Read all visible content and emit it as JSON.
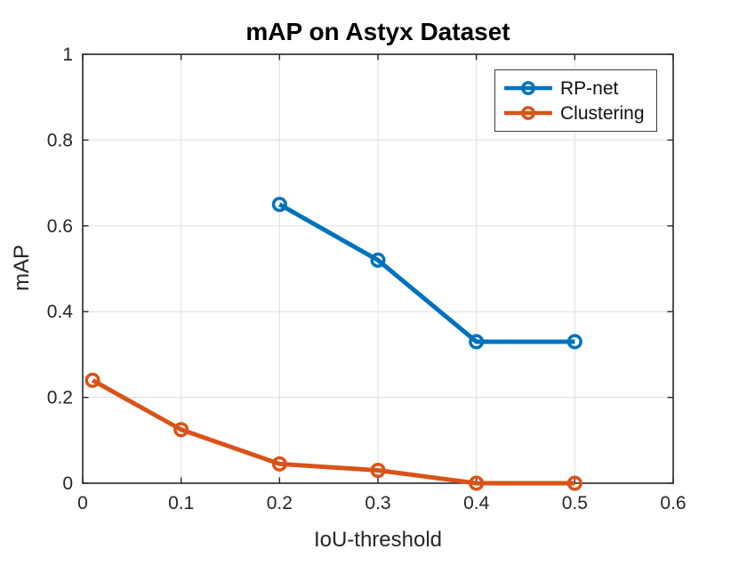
{
  "chart_data": {
    "type": "line",
    "title": "mAP on Astyx Dataset",
    "xlabel": "IoU-threshold",
    "ylabel": "mAP",
    "xlim": [
      0,
      0.6
    ],
    "ylim": [
      0,
      1
    ],
    "xticks": [
      0,
      0.1,
      0.2,
      0.3,
      0.4,
      0.5,
      0.6
    ],
    "xtick_labels": [
      "0",
      "0.1",
      "0.2",
      "0.3",
      "0.4",
      "0.5",
      "0.6"
    ],
    "yticks": [
      0,
      0.2,
      0.4,
      0.6,
      0.8,
      1
    ],
    "ytick_labels": [
      "0",
      "0.2",
      "0.4",
      "0.6",
      "0.8",
      "1"
    ],
    "grid": true,
    "legend_position": "top-right",
    "series": [
      {
        "name": "RP-net",
        "color": "#0072BD",
        "marker": "o",
        "x": [
          0.2,
          0.3,
          0.4,
          0.5
        ],
        "y": [
          0.65,
          0.52,
          0.33,
          0.33
        ]
      },
      {
        "name": "Clustering",
        "color": "#D95319",
        "marker": "o",
        "x": [
          0.01,
          0.1,
          0.2,
          0.3,
          0.4,
          0.5
        ],
        "y": [
          0.24,
          0.125,
          0.045,
          0.03,
          0.0,
          0.0
        ]
      }
    ],
    "styles": {
      "grid_color": "#e2e2e2",
      "axis_color": "#262626",
      "background": "#ffffff",
      "line_width": 5,
      "marker_radius": 6.8,
      "marker_stroke": 3.5
    }
  }
}
